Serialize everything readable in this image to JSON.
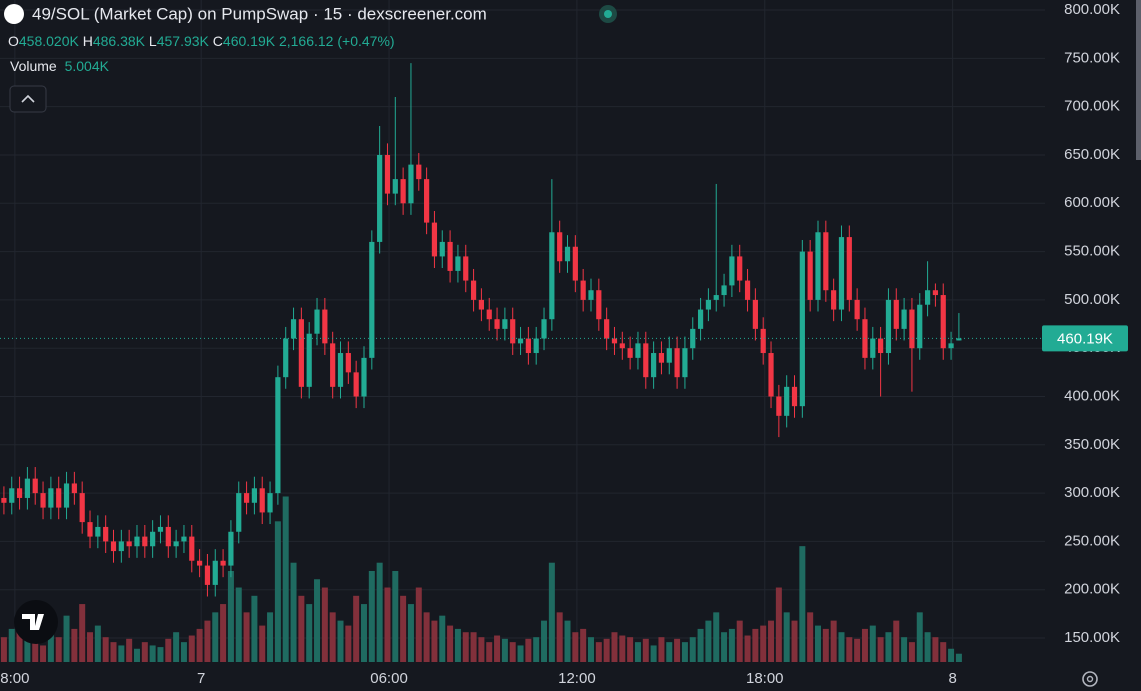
{
  "chart_data": {
    "type": "candlestick",
    "title": "49/SOL (Market Cap) on PumpSwap · 15 · dexscreener.com",
    "ohlc_letters": [
      "O",
      "H",
      "L",
      "C"
    ],
    "ohlc_values": [
      "458.020K",
      "486.38K",
      "457.93K",
      "460.19K"
    ],
    "change": "2,166.12 (+0.47%)",
    "volume_label": "Volume",
    "volume_value": "5.004K",
    "last_price": {
      "value": 460.19,
      "label": "460.19K"
    },
    "up_color": "#22ab94",
    "down_color": "#f23645",
    "volume_up_color": "#1f6b61",
    "volume_down_color": "#82303b",
    "xlim": [
      -0.5,
      133
    ],
    "xticks": [
      {
        "value": 1.4,
        "label": "8:00"
      },
      {
        "value": 25.2,
        "label": "7"
      },
      {
        "value": 49.2,
        "label": "06:00"
      },
      {
        "value": 73.2,
        "label": "12:00"
      },
      {
        "value": 97.2,
        "label": "18:00"
      },
      {
        "value": 121.2,
        "label": "8"
      }
    ],
    "ylim": [
      125.2,
      810.4
    ],
    "yticks": [
      {
        "value": 150,
        "label": "150.00K"
      },
      {
        "value": 200,
        "label": "200.00K"
      },
      {
        "value": 250,
        "label": "250.00K"
      },
      {
        "value": 300,
        "label": "300.00K"
      },
      {
        "value": 350,
        "label": "350.00K"
      },
      {
        "value": 400,
        "label": "400.00K"
      },
      {
        "value": 450,
        "label": "450.00K"
      },
      {
        "value": 500,
        "label": "500.00K"
      },
      {
        "value": 550,
        "label": "550.00K"
      },
      {
        "value": 600,
        "label": "600.00K"
      },
      {
        "value": 650,
        "label": "650.00K"
      },
      {
        "value": 700,
        "label": "700.00K"
      },
      {
        "value": 750,
        "label": "750.00K"
      },
      {
        "value": 800,
        "label": "800.00K"
      }
    ],
    "vlim": [
      0,
      400
    ],
    "grid": true,
    "open": [
      295,
      290,
      305,
      295,
      315,
      300,
      285,
      305,
      285,
      310,
      300,
      270,
      255,
      265,
      250,
      240,
      250,
      245,
      255,
      245,
      260,
      265,
      245,
      250,
      255,
      230,
      225,
      205,
      230,
      225,
      260,
      300,
      290,
      305,
      280,
      300,
      420,
      460,
      480,
      410,
      465,
      490,
      455,
      410,
      445,
      425,
      400,
      440,
      560,
      650,
      610,
      625,
      600,
      640,
      625,
      580,
      545,
      560,
      530,
      545,
      520,
      500,
      490,
      480,
      470,
      480,
      455,
      460,
      445,
      460,
      480,
      570,
      540,
      555,
      520,
      500,
      510,
      480,
      460,
      455,
      450,
      440,
      455,
      420,
      445,
      435,
      450,
      420,
      450,
      470,
      490,
      500,
      505,
      515,
      545,
      520,
      500,
      470,
      445,
      400,
      380,
      410,
      390,
      550,
      500,
      570,
      510,
      490,
      565,
      500,
      480,
      440,
      460,
      445,
      500,
      470,
      490,
      450,
      495,
      510,
      505,
      450,
      458.02
    ],
    "high": [
      307,
      317,
      317,
      327,
      327,
      312,
      317,
      317,
      322,
      322,
      312,
      282,
      277,
      277,
      262,
      262,
      262,
      267,
      267,
      272,
      277,
      277,
      262,
      267,
      267,
      242,
      237,
      242,
      242,
      272,
      312,
      312,
      317,
      317,
      312,
      432,
      472,
      492,
      492,
      477,
      502,
      502,
      467,
      457,
      457,
      437,
      452,
      572,
      680,
      662,
      710,
      637,
      745,
      652,
      637,
      592,
      572,
      572,
      557,
      557,
      532,
      512,
      502,
      492,
      492,
      492,
      472,
      472,
      472,
      492,
      625,
      582,
      567,
      567,
      532,
      522,
      522,
      492,
      472,
      467,
      462,
      467,
      467,
      457,
      457,
      462,
      462,
      462,
      482,
      502,
      512,
      620,
      527,
      557,
      557,
      532,
      512,
      482,
      457,
      412,
      422,
      422,
      562,
      562,
      582,
      582,
      522,
      577,
      577,
      512,
      492,
      472,
      472,
      512,
      512,
      502,
      502,
      507,
      540,
      517,
      517,
      467,
      486.38
    ],
    "low": [
      278,
      278,
      283,
      283,
      288,
      273,
      273,
      273,
      273,
      288,
      258,
      243,
      243,
      238,
      228,
      228,
      233,
      233,
      233,
      233,
      248,
      233,
      233,
      238,
      218,
      213,
      193,
      193,
      213,
      213,
      248,
      278,
      278,
      268,
      268,
      288,
      408,
      448,
      398,
      398,
      453,
      443,
      398,
      398,
      413,
      388,
      388,
      428,
      548,
      598,
      598,
      588,
      588,
      613,
      568,
      533,
      533,
      518,
      518,
      508,
      488,
      478,
      468,
      458,
      458,
      443,
      443,
      433,
      433,
      448,
      468,
      528,
      528,
      508,
      488,
      488,
      468,
      448,
      443,
      438,
      428,
      428,
      408,
      408,
      423,
      423,
      408,
      408,
      438,
      458,
      478,
      488,
      493,
      503,
      508,
      488,
      458,
      433,
      388,
      358,
      368,
      378,
      378,
      488,
      488,
      498,
      478,
      478,
      488,
      468,
      428,
      428,
      400,
      433,
      458,
      458,
      405,
      438,
      483,
      493,
      438,
      438,
      457.93
    ],
    "close": [
      290,
      305,
      295,
      315,
      300,
      285,
      305,
      285,
      310,
      300,
      270,
      255,
      265,
      250,
      240,
      250,
      245,
      255,
      245,
      260,
      265,
      245,
      250,
      255,
      230,
      225,
      205,
      230,
      225,
      260,
      300,
      290,
      305,
      280,
      300,
      420,
      460,
      480,
      410,
      465,
      490,
      455,
      410,
      445,
      425,
      400,
      440,
      560,
      650,
      610,
      625,
      600,
      640,
      625,
      580,
      545,
      560,
      530,
      545,
      520,
      500,
      490,
      480,
      470,
      480,
      455,
      460,
      445,
      460,
      480,
      570,
      540,
      555,
      520,
      500,
      510,
      480,
      460,
      455,
      450,
      440,
      455,
      420,
      445,
      435,
      450,
      420,
      450,
      470,
      490,
      500,
      505,
      515,
      545,
      520,
      500,
      470,
      445,
      400,
      380,
      410,
      390,
      550,
      500,
      570,
      510,
      490,
      565,
      500,
      480,
      440,
      460,
      445,
      500,
      470,
      490,
      450,
      495,
      510,
      505,
      450,
      455,
      460.19
    ],
    "volume": [
      15,
      20,
      18,
      25,
      12,
      10,
      30,
      15,
      28,
      20,
      35,
      18,
      22,
      15,
      12,
      10,
      14,
      8,
      12,
      10,
      9,
      14,
      18,
      12,
      16,
      20,
      25,
      30,
      35,
      55,
      45,
      30,
      40,
      22,
      30,
      85,
      100,
      60,
      40,
      35,
      50,
      45,
      30,
      25,
      22,
      40,
      35,
      55,
      60,
      45,
      55,
      40,
      35,
      45,
      30,
      25,
      28,
      22,
      20,
      18,
      18,
      15,
      12,
      16,
      14,
      12,
      10,
      14,
      15,
      25,
      60,
      30,
      25,
      18,
      20,
      15,
      12,
      14,
      18,
      16,
      15,
      12,
      14,
      10,
      15,
      12,
      14,
      12,
      15,
      20,
      25,
      30,
      18,
      20,
      25,
      16,
      20,
      22,
      25,
      45,
      30,
      25,
      70,
      30,
      22,
      20,
      25,
      18,
      15,
      14,
      20,
      22,
      15,
      18,
      25,
      15,
      12,
      30,
      18,
      15,
      12,
      8,
      5.004
    ]
  }
}
